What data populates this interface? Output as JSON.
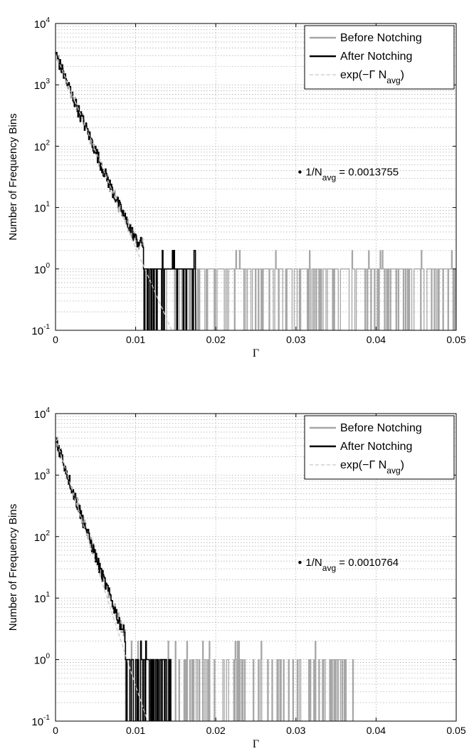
{
  "charts": [
    {
      "ylabel": "Number of Frequency Bins",
      "xlabel": "Γ",
      "annotation": {
        "prefix": "1/N",
        "sub": "avg",
        "suffix": " = 0.0013755",
        "gamma": 0.0305,
        "count": 38
      }
    },
    {
      "ylabel": "Number of Frequency Bins",
      "xlabel": "Γ",
      "annotation": {
        "prefix": "1/N",
        "sub": "avg",
        "suffix": " = 0.0010764",
        "gamma": 0.0305,
        "count": 38
      }
    }
  ],
  "legend": {
    "before": "Before Notching",
    "after": "After Notching",
    "fit_prefix": "exp(−Γ N",
    "fit_sub": "avg",
    "fit_suffix": ")"
  },
  "colors": {
    "before": "#a6a6a6",
    "after": "#000000",
    "fit": "#c8c8c8",
    "grid": "#b0b0b0"
  },
  "chart_data": [
    {
      "type": "line",
      "xlabel": "Γ",
      "ylabel": "Number of Frequency Bins",
      "xlim": [
        0,
        0.05
      ],
      "ylim": [
        0.1,
        10000
      ],
      "yscale": "log",
      "grid": true,
      "legend_position": "top-right",
      "x_ticks": [
        "0",
        "0.01",
        "0.02",
        "0.03",
        "0.04",
        "0.05"
      ],
      "y_ticks": [
        "10^-1",
        "10^0",
        "10^1",
        "10^2",
        "10^3",
        "10^4"
      ],
      "series": [
        {
          "name": "Before Notching",
          "x": [
            0,
            0.002,
            0.004,
            0.006,
            0.008,
            0.01,
            0.012,
            0.014,
            0.016,
            0.018,
            0.02,
            0.025,
            0.03,
            0.04,
            0.05
          ],
          "values": [
            3200,
            700,
            170,
            40,
            10,
            3,
            2,
            1,
            1,
            1,
            1,
            1,
            1,
            1,
            1
          ]
        },
        {
          "name": "After Notching",
          "x": [
            0,
            0.002,
            0.004,
            0.006,
            0.008,
            0.01,
            0.012,
            0.014,
            0.016,
            0.0175
          ],
          "values": [
            3200,
            700,
            170,
            40,
            10,
            3,
            2,
            1,
            1,
            1
          ]
        },
        {
          "name": "exp(−Γ N_avg)",
          "x": [
            0,
            0.005,
            0.01,
            0.0145
          ],
          "values": [
            3200,
            84,
            2.2,
            0.1
          ]
        }
      ],
      "annotation": "1/N_avg = 0.0013755"
    },
    {
      "type": "line",
      "xlabel": "Γ",
      "ylabel": "Number of Frequency Bins",
      "xlim": [
        0,
        0.05
      ],
      "ylim": [
        0.1,
        10000
      ],
      "yscale": "log",
      "grid": true,
      "legend_position": "top-right",
      "x_ticks": [
        "0",
        "0.01",
        "0.02",
        "0.03",
        "0.04",
        "0.05"
      ],
      "y_ticks": [
        "10^-1",
        "10^0",
        "10^1",
        "10^2",
        "10^3",
        "10^4"
      ],
      "series": [
        {
          "name": "Before Notching",
          "x": [
            0,
            0.002,
            0.004,
            0.006,
            0.008,
            0.01,
            0.012,
            0.015,
            0.02,
            0.025,
            0.03,
            0.037,
            0.05
          ],
          "values": [
            4000,
            630,
            110,
            20,
            4,
            1,
            1,
            1,
            1,
            1,
            1,
            1,
            1
          ]
        },
        {
          "name": "After Notching",
          "x": [
            0,
            0.002,
            0.004,
            0.006,
            0.008,
            0.01,
            0.012,
            0.0145
          ],
          "values": [
            4000,
            630,
            110,
            20,
            4,
            1,
            1,
            1
          ]
        },
        {
          "name": "exp(−Γ N_avg)",
          "x": [
            0,
            0.005,
            0.01,
            0.0115
          ],
          "values": [
            4000,
            38,
            0.37,
            0.1
          ]
        }
      ],
      "annotation": "1/N_avg = 0.0010764"
    }
  ]
}
